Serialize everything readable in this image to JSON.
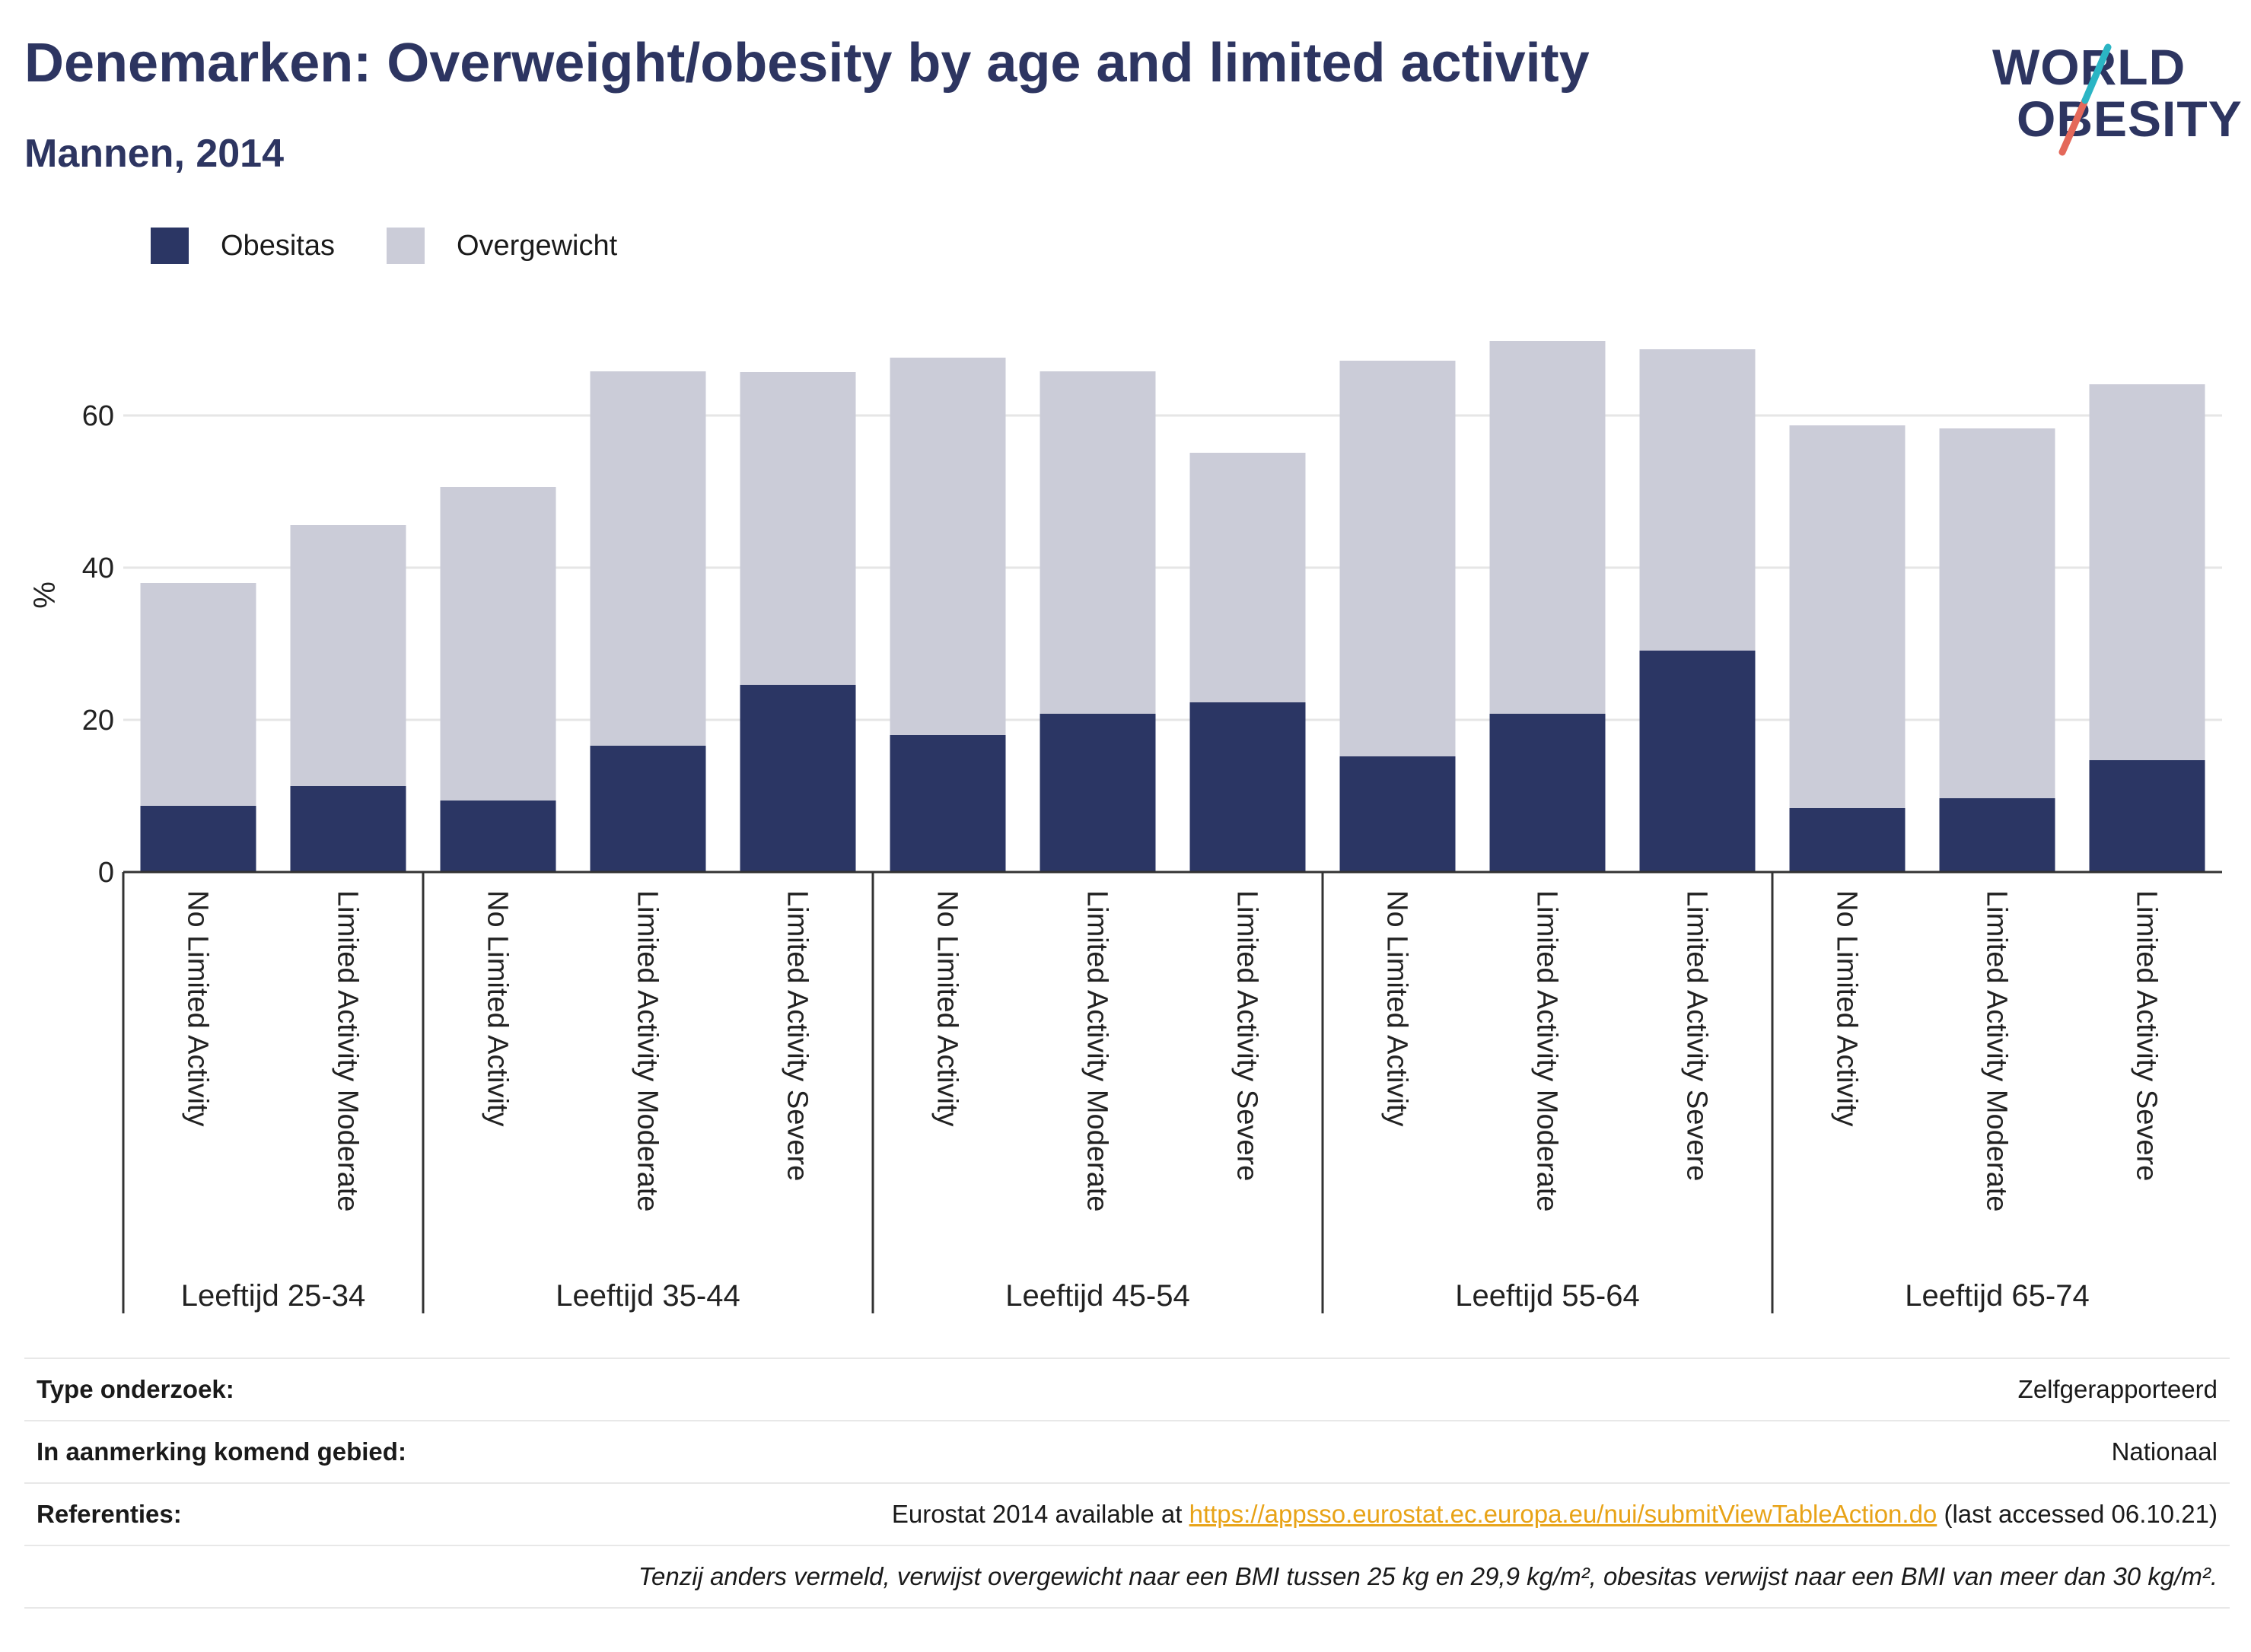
{
  "title": "Denemarken: Overweight/obesity by age and limited activity",
  "subtitle": "Mannen, 2014",
  "logo": {
    "line1": "WORLD",
    "line2": "OBESITY",
    "colors": [
      "#2d3561",
      "#e4685a",
      "#2bb5c4"
    ]
  },
  "colors": {
    "obesitas": "#2b3664",
    "overgewicht": "#cbccd8",
    "axis": "#333333",
    "grid": "#e6e6e6"
  },
  "chart_data": {
    "type": "bar",
    "stacked": true,
    "ylabel": "%",
    "ylim": [
      0,
      75
    ],
    "yticks": [
      0,
      20,
      40,
      60
    ],
    "grid": true,
    "legend_position": "top-left",
    "series": [
      {
        "name": "Obesitas",
        "values": [
          8.7,
          11.3,
          9.4,
          16.6,
          24.6,
          18.0,
          20.8,
          22.3,
          15.2,
          20.8,
          29.1,
          8.4,
          9.7,
          14.7
        ]
      },
      {
        "name": "Overgewicht",
        "values": [
          29.3,
          34.3,
          41.2,
          49.2,
          41.1,
          49.6,
          45.0,
          32.8,
          52.0,
          49.0,
          39.6,
          50.3,
          48.6,
          49.4
        ]
      }
    ],
    "groups": [
      {
        "label": "Leeftijd 25-34",
        "categories": [
          "No Limited Activity",
          "Limited Activity Moderate"
        ]
      },
      {
        "label": "Leeftijd 35-44",
        "categories": [
          "No Limited Activity",
          "Limited Activity Moderate",
          "Limited Activity Severe"
        ]
      },
      {
        "label": "Leeftijd 45-54",
        "categories": [
          "No Limited Activity",
          "Limited Activity Moderate",
          "Limited Activity Severe"
        ]
      },
      {
        "label": "Leeftijd 55-64",
        "categories": [
          "No Limited Activity",
          "Limited Activity Moderate",
          "Limited Activity Severe"
        ]
      },
      {
        "label": "Leeftijd 65-74",
        "categories": [
          "No Limited Activity",
          "Limited Activity Moderate",
          "Limited Activity Severe"
        ]
      }
    ]
  },
  "meta": {
    "type_label": "Type onderzoek:",
    "type_value": "Zelfgerapporteerd",
    "area_label": "In aanmerking komend gebied:",
    "area_value": "Nationaal",
    "ref_label": "Referenties:",
    "ref_prefix": "Eurostat 2014 available at ",
    "ref_link": "https://appsso.eurostat.ec.europa.eu/nui/submitViewTableAction.do",
    "ref_suffix": " (last accessed 06.10.21)",
    "note": "Tenzij anders vermeld, verwijst overgewicht naar een BMI tussen 25 kg en 29,9 kg/m², obesitas verwijst naar een BMI van meer dan 30 kg/m²."
  }
}
